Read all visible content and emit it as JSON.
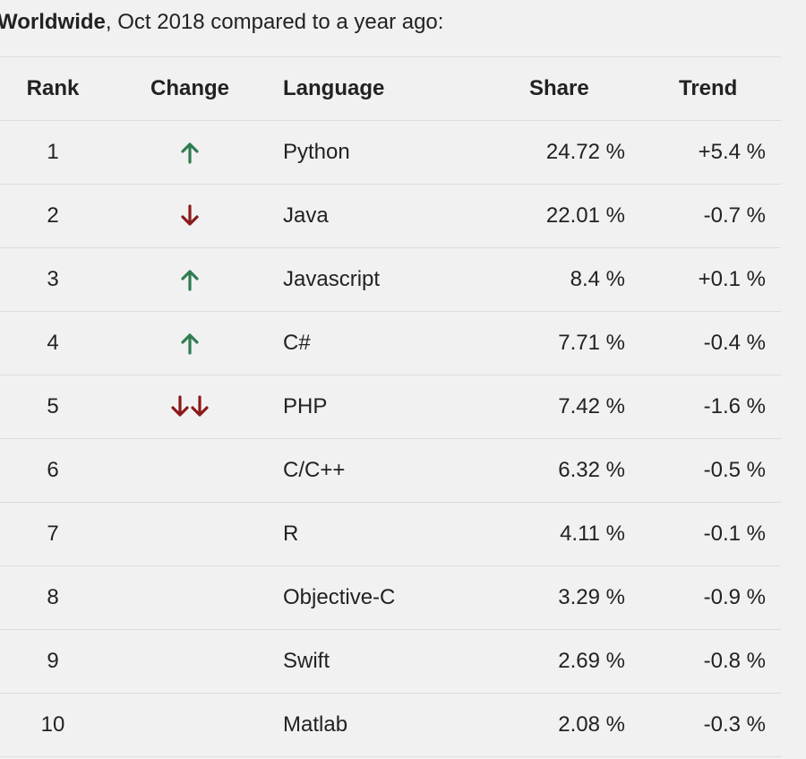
{
  "heading": {
    "bold": "Worldwide",
    "rest": ", Oct 2018 compared to a year ago:"
  },
  "table": {
    "columns": {
      "rank": "Rank",
      "change": "Change",
      "language": "Language",
      "share": "Share",
      "trend": "Trend"
    },
    "rows": [
      {
        "rank": "1",
        "change": "up",
        "language": "Python",
        "share": "24.72 %",
        "trend": "+5.4 %"
      },
      {
        "rank": "2",
        "change": "down",
        "language": "Java",
        "share": "22.01 %",
        "trend": "-0.7 %"
      },
      {
        "rank": "3",
        "change": "up",
        "language": "Javascript",
        "share": "8.4 %",
        "trend": "+0.1 %"
      },
      {
        "rank": "4",
        "change": "up",
        "language": "C#",
        "share": "7.71 %",
        "trend": "-0.4 %"
      },
      {
        "rank": "5",
        "change": "down-down",
        "language": "PHP",
        "share": "7.42 %",
        "trend": "-1.6 %"
      },
      {
        "rank": "6",
        "change": "",
        "language": "C/C++",
        "share": "6.32 %",
        "trend": "-0.5 %"
      },
      {
        "rank": "7",
        "change": "",
        "language": "R",
        "share": "4.11 %",
        "trend": "-0.1 %"
      },
      {
        "rank": "8",
        "change": "",
        "language": "Objective-C",
        "share": "3.29 %",
        "trend": "-0.9 %"
      },
      {
        "rank": "9",
        "change": "",
        "language": "Swift",
        "share": "2.69 %",
        "trend": "-0.8 %"
      },
      {
        "rank": "10",
        "change": "",
        "language": "Matlab",
        "share": "2.08 %",
        "trend": "-0.3 %"
      }
    ]
  },
  "colors": {
    "up": "#2e7d4f",
    "down": "#8b1a1a",
    "text": "#222222",
    "background": "#f1f1f1",
    "border": "#dcdcdc"
  },
  "icons": {
    "up": "arrow-up-icon",
    "down": "arrow-down-icon"
  }
}
